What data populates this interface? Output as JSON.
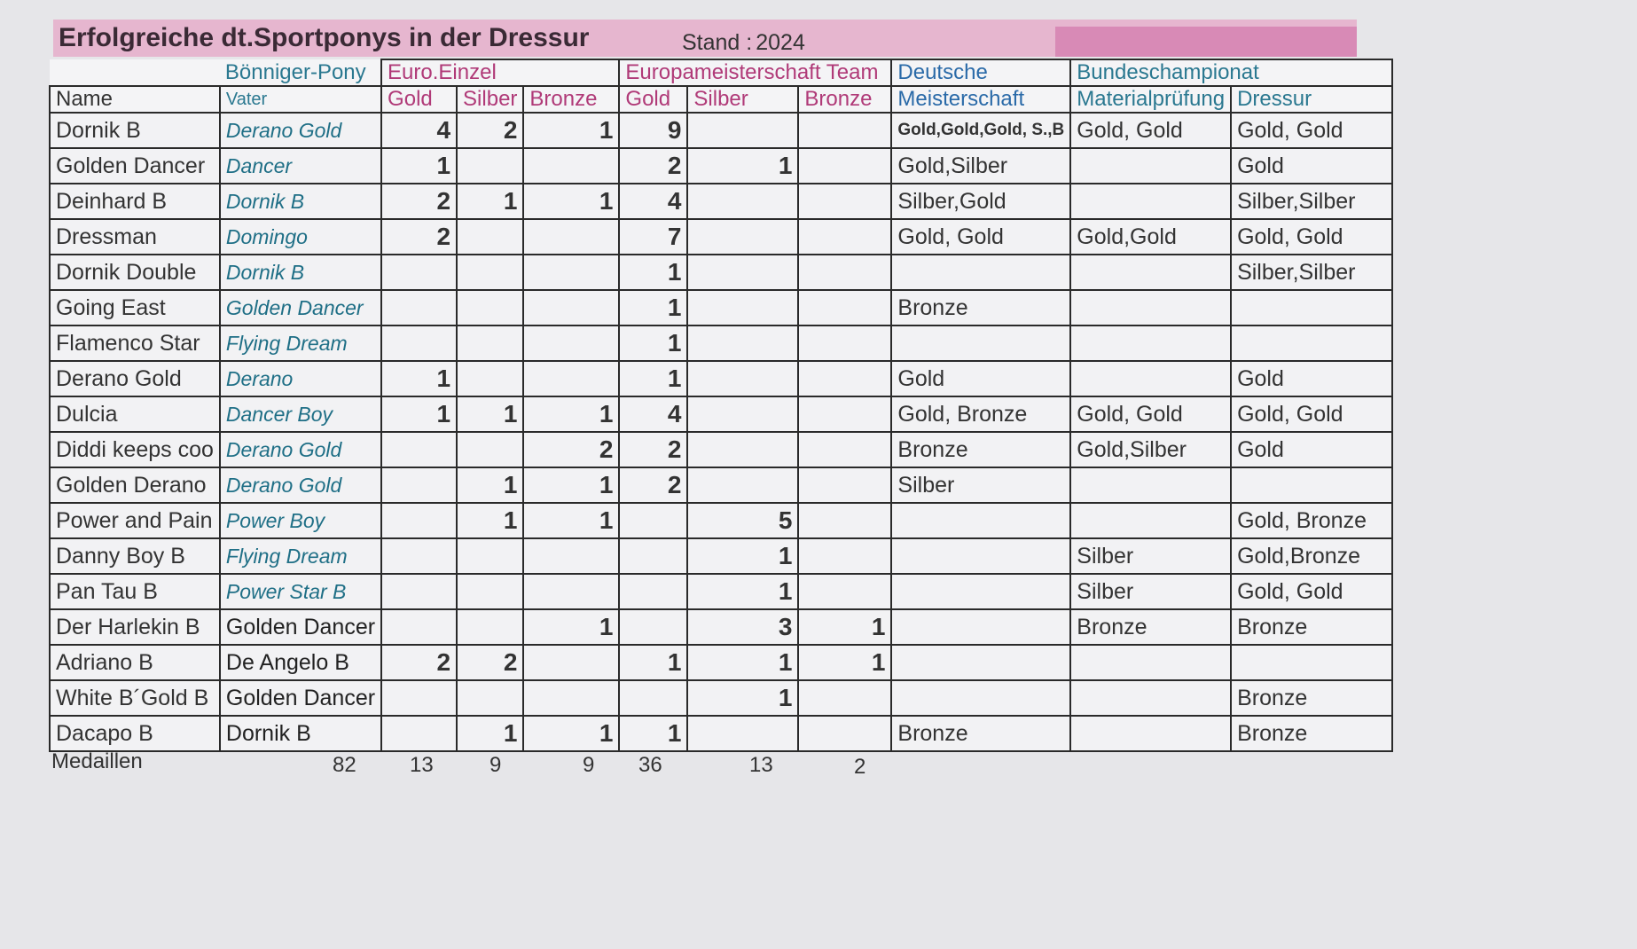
{
  "title": "Erfolgreiche dt.Sportponys in der Dressur",
  "stand_label": "Stand :",
  "stand_year": "2024",
  "headers": {
    "group_vater": "Bönniger-Pony",
    "group_euro_einzel": "Euro.Einzel",
    "group_em_team": "Europameisterschaft Team",
    "group_deutsche": "Deutsche",
    "group_bundeschampionat": "Bundeschampionat",
    "name": "Name",
    "vater": "Vater",
    "ee_gold": "Gold",
    "ee_silber": "Silber",
    "ee_bronze": "Bronze",
    "emt_gold": "Gold",
    "emt_silber": "Silber",
    "emt_bronze": "Bronze",
    "meisterschaft": "Meisterschaft",
    "materialpruefung": "Materialprüfung",
    "dressur": "Dressur"
  },
  "rows": [
    {
      "name": "Dornik B",
      "vater": "Derano Gold",
      "ee": [
        "4",
        "2",
        "1"
      ],
      "emt": [
        "9",
        "",
        ""
      ],
      "dm": "Gold,Gold,Gold, S.,B",
      "mp": "Gold, Gold",
      "dr": "Gold, Gold"
    },
    {
      "name": "Golden Dancer",
      "vater": "Dancer",
      "ee": [
        "1",
        "",
        ""
      ],
      "emt": [
        "2",
        "1",
        ""
      ],
      "dm": "Gold,Silber",
      "mp": "",
      "dr": "Gold"
    },
    {
      "name": "Deinhard B",
      "vater": "Dornik B",
      "ee": [
        "2",
        "1",
        "1"
      ],
      "emt": [
        "4",
        "",
        ""
      ],
      "dm": "Silber,Gold",
      "mp": "",
      "dr": "Silber,Silber"
    },
    {
      "name": "Dressman",
      "vater": "Domingo",
      "ee": [
        "2",
        "",
        ""
      ],
      "emt": [
        "7",
        "",
        ""
      ],
      "dm": "Gold, Gold",
      "mp": "Gold,Gold",
      "dr": "Gold, Gold"
    },
    {
      "name": "Dornik Double",
      "vater": "Dornik B",
      "ee": [
        "",
        "",
        ""
      ],
      "emt": [
        "1",
        "",
        ""
      ],
      "dm": "",
      "mp": "",
      "dr": "Silber,Silber"
    },
    {
      "name": "Going East",
      "vater": "Golden Dancer",
      "ee": [
        "",
        "",
        ""
      ],
      "emt": [
        "1",
        "",
        ""
      ],
      "dm": "Bronze",
      "mp": "",
      "dr": ""
    },
    {
      "name": "Flamenco Star",
      "vater": "Flying Dream",
      "ee": [
        "",
        "",
        ""
      ],
      "emt": [
        "1",
        "",
        ""
      ],
      "dm": "",
      "mp": "",
      "dr": ""
    },
    {
      "name": "Derano Gold",
      "vater": "Derano",
      "ee": [
        "1",
        "",
        ""
      ],
      "emt": [
        "1",
        "",
        ""
      ],
      "dm": "Gold",
      "mp": "",
      "dr": "Gold"
    },
    {
      "name": "Dulcia",
      "vater": "Dancer Boy",
      "ee": [
        "1",
        "1",
        "1"
      ],
      "emt": [
        "4",
        "",
        ""
      ],
      "dm": "Gold, Bronze",
      "mp": "Gold, Gold",
      "dr": "Gold, Gold"
    },
    {
      "name": "Diddi keeps coo",
      "vater": "Derano Gold",
      "ee": [
        "",
        "",
        "2"
      ],
      "emt": [
        "2",
        "",
        ""
      ],
      "dm": "Bronze",
      "mp": "Gold,Silber",
      "dr": "Gold"
    },
    {
      "name": "Golden Derano",
      "vater": "Derano Gold",
      "ee": [
        "",
        "1",
        "1"
      ],
      "emt": [
        "2",
        "",
        ""
      ],
      "dm": "Silber",
      "mp": "",
      "dr": ""
    },
    {
      "name": "Power and Pain",
      "vater": "Power Boy",
      "ee": [
        "",
        "1",
        "1"
      ],
      "emt": [
        "",
        "5",
        ""
      ],
      "dm": "",
      "mp": "",
      "dr": "Gold, Bronze"
    },
    {
      "name": "Danny Boy B",
      "vater": "Flying Dream",
      "ee": [
        "",
        "",
        ""
      ],
      "emt": [
        "",
        "1",
        ""
      ],
      "dm": "",
      "mp": "Silber",
      "dr": "Gold,Bronze"
    },
    {
      "name": "Pan Tau B",
      "vater": "Power Star B",
      "ee": [
        "",
        "",
        ""
      ],
      "emt": [
        "",
        "1",
        ""
      ],
      "dm": "",
      "mp": "Silber",
      "dr": "Gold, Gold"
    },
    {
      "name": "Der Harlekin B",
      "vater": "Golden Dancer",
      "plain": true,
      "ee": [
        "",
        "",
        "1"
      ],
      "emt": [
        "",
        "3",
        "1"
      ],
      "dm": "",
      "mp": "Bronze",
      "dr": "Bronze"
    },
    {
      "name": "Adriano B",
      "vater": "De Angelo B",
      "plain": true,
      "ee": [
        "2",
        "2",
        ""
      ],
      "emt": [
        "1",
        "1",
        "1"
      ],
      "dm": "",
      "mp": "",
      "dr": ""
    },
    {
      "name": "White B´Gold B",
      "vater": "Golden Dancer",
      "plain": true,
      "ee": [
        "",
        "",
        ""
      ],
      "emt": [
        "",
        "1",
        ""
      ],
      "dm": "",
      "mp": "",
      "dr": "Bronze"
    },
    {
      "name": "Dacapo B",
      "vater": "Dornik B",
      "plain": true,
      "ee": [
        "",
        "1",
        "1"
      ],
      "emt": [
        "1",
        "",
        ""
      ],
      "dm": "Bronze",
      "mp": "",
      "dr": "Bronze"
    }
  ],
  "totals": {
    "label": "Medaillen",
    "total": "82",
    "ee_gold": "13",
    "ee_silber": "9",
    "ee_bronze": "9",
    "emt_gold": "36",
    "emt_silber": "13",
    "emt_bronze": "2"
  },
  "colors": {
    "title_bar": "#e6b6cf",
    "header_pink": "#b03a78",
    "header_blue": "#2a6aa8",
    "vater_teal": "#1f6f86"
  }
}
